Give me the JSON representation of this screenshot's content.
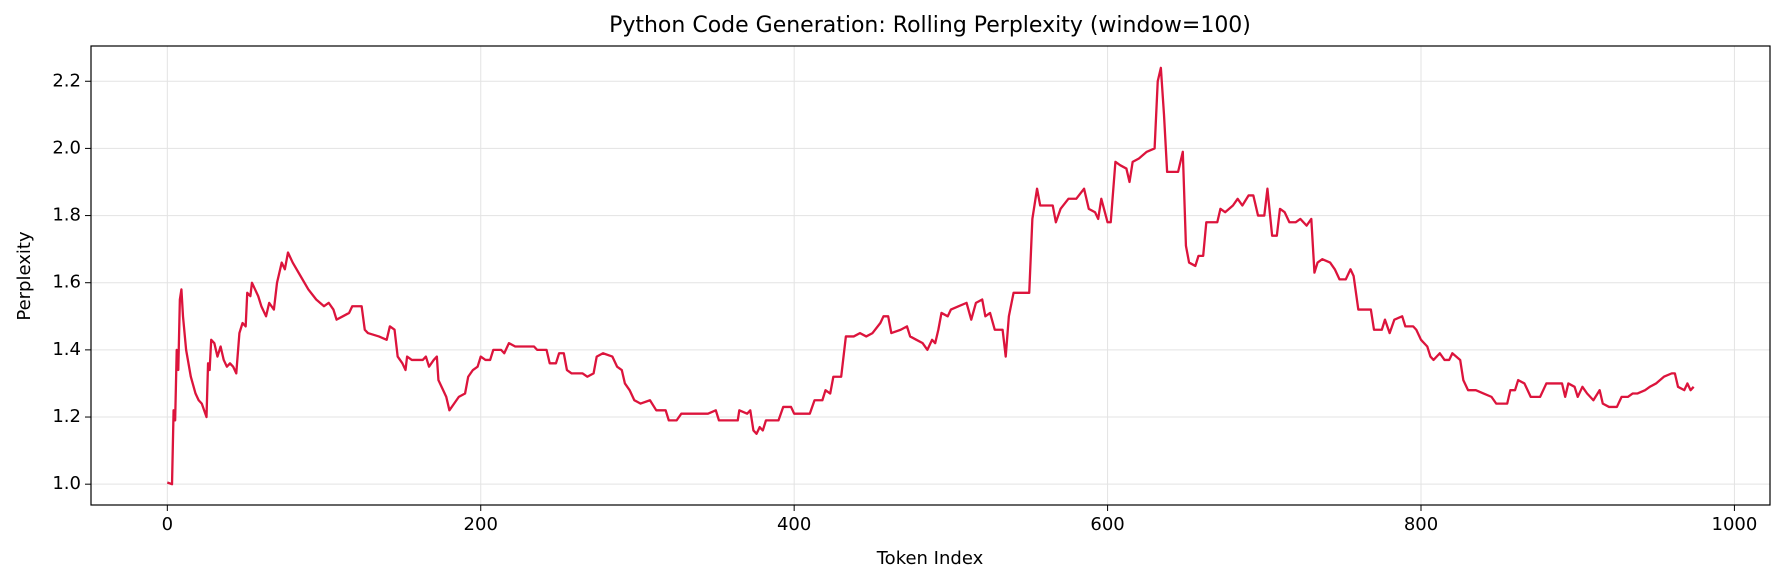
{
  "chart_data": {
    "type": "line",
    "title": "Python Code Generation: Rolling Perplexity (window=100)",
    "x_label": "Token Index",
    "y_label": "Perplexity",
    "xlim": [
      -48.7,
      1022.7
    ],
    "ylim": [
      0.938,
      2.305
    ],
    "xticks": [
      0,
      200,
      400,
      600,
      800,
      1000
    ],
    "yticks": [
      {
        "value": 1,
        "label": "1.0"
      },
      1.2,
      1.4,
      1.6,
      1.8,
      {
        "value": 2,
        "label": "2.0"
      },
      2.2
    ],
    "grid": true,
    "series": [
      {
        "name": "Rolling Perplexity",
        "color": "#dc143c",
        "x": [
          0,
          3,
          4,
          5,
          6,
          7,
          8,
          9,
          10,
          12,
          15,
          18,
          20,
          22,
          25,
          26,
          27,
          28,
          30,
          32,
          34,
          36,
          38,
          40,
          42,
          44,
          46,
          48,
          50,
          51,
          53,
          54,
          56,
          58,
          60,
          63,
          65,
          68,
          70,
          73,
          75,
          77,
          80,
          85,
          90,
          95,
          100,
          103,
          106,
          108,
          112,
          116,
          118,
          124,
          126,
          128,
          135,
          140,
          142,
          145,
          147,
          150,
          152,
          153,
          156,
          163,
          165,
          167,
          170,
          172,
          173,
          176,
          178,
          180,
          183,
          186,
          190,
          192,
          195,
          198,
          200,
          203,
          206,
          208,
          213,
          215,
          218,
          222,
          230,
          234,
          236,
          242,
          244,
          248,
          250,
          253,
          255,
          258,
          265,
          268,
          272,
          274,
          278,
          284,
          287,
          290,
          292,
          295,
          298,
          302,
          308,
          312,
          318,
          320,
          325,
          328,
          335,
          340,
          345,
          350,
          352,
          360,
          364,
          365,
          370,
          372,
          374,
          376,
          378,
          380,
          382,
          390,
          393,
          398,
          400,
          410,
          413,
          418,
          420,
          423,
          425,
          430,
          433,
          438,
          442,
          446,
          450,
          455,
          457,
          460,
          462,
          468,
          472,
          474,
          478,
          482,
          485,
          488,
          490,
          492,
          494,
          498,
          500,
          505,
          510,
          513,
          516,
          520,
          522,
          525,
          528,
          533,
          535,
          537,
          540,
          545,
          550,
          552,
          555,
          557,
          560,
          565,
          567,
          570,
          575,
          580,
          585,
          588,
          592,
          594,
          596,
          600,
          602,
          605,
          608,
          612,
          614,
          616,
          620,
          625,
          630,
          632,
          634,
          636,
          638,
          642,
          645,
          648,
          650,
          652,
          656,
          658,
          661,
          663,
          670,
          672,
          675,
          680,
          683,
          686,
          690,
          693,
          696,
          700,
          702,
          705,
          708,
          710,
          713,
          716,
          720,
          723,
          727,
          730,
          732,
          734,
          737,
          742,
          745,
          748,
          752,
          755,
          757,
          760,
          765,
          768,
          770,
          775,
          777,
          780,
          783,
          788,
          790,
          795,
          797,
          800,
          804,
          806,
          808,
          812,
          815,
          818,
          820,
          825,
          827,
          830,
          835,
          840,
          845,
          848,
          855,
          857,
          860,
          862,
          866,
          868,
          870,
          876,
          880,
          890,
          892,
          894,
          898,
          900,
          903,
          906,
          910,
          914,
          916,
          920,
          925,
          928,
          932,
          935,
          938,
          943,
          946,
          950,
          955,
          960,
          962,
          964,
          968,
          970,
          972,
          974
        ],
        "values": [
          1.005,
          1.0,
          1.22,
          1.19,
          1.4,
          1.34,
          1.55,
          1.58,
          1.5,
          1.4,
          1.32,
          1.27,
          1.25,
          1.24,
          1.2,
          1.36,
          1.34,
          1.43,
          1.42,
          1.38,
          1.41,
          1.37,
          1.35,
          1.36,
          1.35,
          1.33,
          1.45,
          1.48,
          1.47,
          1.57,
          1.56,
          1.6,
          1.58,
          1.56,
          1.53,
          1.5,
          1.54,
          1.52,
          1.6,
          1.66,
          1.64,
          1.69,
          1.66,
          1.62,
          1.58,
          1.55,
          1.53,
          1.54,
          1.52,
          1.49,
          1.5,
          1.51,
          1.53,
          1.53,
          1.46,
          1.45,
          1.44,
          1.43,
          1.47,
          1.46,
          1.38,
          1.36,
          1.34,
          1.38,
          1.37,
          1.37,
          1.38,
          1.35,
          1.37,
          1.38,
          1.31,
          1.28,
          1.26,
          1.22,
          1.24,
          1.26,
          1.27,
          1.32,
          1.34,
          1.35,
          1.38,
          1.37,
          1.37,
          1.4,
          1.4,
          1.39,
          1.42,
          1.41,
          1.41,
          1.41,
          1.4,
          1.4,
          1.36,
          1.36,
          1.39,
          1.39,
          1.34,
          1.33,
          1.33,
          1.32,
          1.33,
          1.38,
          1.39,
          1.38,
          1.35,
          1.34,
          1.3,
          1.28,
          1.25,
          1.24,
          1.25,
          1.22,
          1.22,
          1.19,
          1.19,
          1.21,
          1.21,
          1.21,
          1.21,
          1.22,
          1.19,
          1.19,
          1.19,
          1.22,
          1.21,
          1.22,
          1.16,
          1.15,
          1.17,
          1.16,
          1.19,
          1.19,
          1.23,
          1.23,
          1.21,
          1.21,
          1.25,
          1.25,
          1.28,
          1.27,
          1.32,
          1.32,
          1.44,
          1.44,
          1.45,
          1.44,
          1.45,
          1.48,
          1.5,
          1.5,
          1.45,
          1.46,
          1.47,
          1.44,
          1.43,
          1.42,
          1.4,
          1.43,
          1.42,
          1.46,
          1.51,
          1.5,
          1.52,
          1.53,
          1.54,
          1.49,
          1.54,
          1.55,
          1.5,
          1.51,
          1.46,
          1.46,
          1.38,
          1.5,
          1.57,
          1.57,
          1.57,
          1.79,
          1.88,
          1.83,
          1.83,
          1.83,
          1.78,
          1.82,
          1.85,
          1.85,
          1.88,
          1.82,
          1.81,
          1.79,
          1.85,
          1.78,
          1.78,
          1.96,
          1.95,
          1.94,
          1.9,
          1.96,
          1.97,
          1.99,
          2.0,
          2.2,
          2.24,
          2.1,
          1.93,
          1.93,
          1.93,
          1.99,
          1.71,
          1.66,
          1.65,
          1.68,
          1.68,
          1.78,
          1.78,
          1.82,
          1.81,
          1.83,
          1.85,
          1.83,
          1.86,
          1.86,
          1.8,
          1.8,
          1.88,
          1.74,
          1.74,
          1.82,
          1.81,
          1.78,
          1.78,
          1.79,
          1.77,
          1.79,
          1.63,
          1.66,
          1.67,
          1.66,
          1.64,
          1.61,
          1.61,
          1.64,
          1.62,
          1.52,
          1.52,
          1.52,
          1.46,
          1.46,
          1.49,
          1.45,
          1.49,
          1.5,
          1.47,
          1.47,
          1.46,
          1.43,
          1.41,
          1.38,
          1.37,
          1.39,
          1.37,
          1.37,
          1.39,
          1.37,
          1.31,
          1.28,
          1.28,
          1.27,
          1.26,
          1.24,
          1.24,
          1.28,
          1.28,
          1.31,
          1.3,
          1.28,
          1.26,
          1.26,
          1.3,
          1.3,
          1.26,
          1.3,
          1.29,
          1.26,
          1.29,
          1.27,
          1.25,
          1.28,
          1.24,
          1.23,
          1.23,
          1.26,
          1.26,
          1.27,
          1.27,
          1.28,
          1.29,
          1.3,
          1.32,
          1.33,
          1.33,
          1.29,
          1.28,
          1.3,
          1.28,
          1.29
        ]
      }
    ]
  }
}
